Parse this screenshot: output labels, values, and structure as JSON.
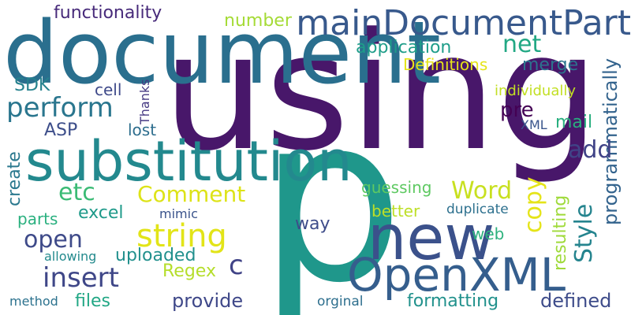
{
  "cloud": {
    "words": [
      {
        "text": "using",
        "color": "#48176a"
      },
      {
        "text": "p",
        "color": "#1f978b"
      },
      {
        "text": "document",
        "color": "#2a6f8e"
      },
      {
        "text": "substitution",
        "color": "#23898e"
      },
      {
        "text": "new",
        "color": "#3b518b"
      },
      {
        "text": "OpenXML",
        "color": "#355e8d"
      },
      {
        "text": "mainDocumentPart",
        "color": "#38598c"
      },
      {
        "text": "string",
        "color": "#e2e418"
      },
      {
        "text": "functionality",
        "color": "#472a7a"
      },
      {
        "text": "number",
        "color": "#a5db36"
      },
      {
        "text": "net",
        "color": "#22a884"
      },
      {
        "text": "application",
        "color": "#1e9d89"
      },
      {
        "text": "Definitions",
        "color": "#e5e419"
      },
      {
        "text": "merge",
        "color": "#2c738e"
      },
      {
        "text": "SDK",
        "color": "#26828e"
      },
      {
        "text": "cell",
        "color": "#3e4989"
      },
      {
        "text": "Thanks",
        "color": "#453882"
      },
      {
        "text": "perform",
        "color": "#2a768e"
      },
      {
        "text": "programmatically",
        "color": "#33638d"
      },
      {
        "text": "individually",
        "color": "#c2df23"
      },
      {
        "text": "ASP",
        "color": "#3d4e8a"
      },
      {
        "text": "lost",
        "color": "#2e6e8e"
      },
      {
        "text": "pre",
        "color": "#440154"
      },
      {
        "text": "mail",
        "color": "#29af7f"
      },
      {
        "text": "XML",
        "color": "#39558c"
      },
      {
        "text": "add",
        "color": "#404387"
      },
      {
        "text": "create",
        "color": "#2a788e"
      },
      {
        "text": "etc",
        "color": "#3bbb75"
      },
      {
        "text": "Comment",
        "color": "#dde318"
      },
      {
        "text": "Word",
        "color": "#c8e020"
      },
      {
        "text": "guessing",
        "color": "#5ec962"
      },
      {
        "text": "copy",
        "color": "#e5e419"
      },
      {
        "text": "Style",
        "color": "#25848e"
      },
      {
        "text": "resulting",
        "color": "#9fda3a"
      },
      {
        "text": "parts",
        "color": "#2ab07f"
      },
      {
        "text": "excel",
        "color": "#1f9a8a"
      },
      {
        "text": "mimic",
        "color": "#3a538b"
      },
      {
        "text": "better",
        "color": "#bddf26"
      },
      {
        "text": "duplicate",
        "color": "#2d708e"
      },
      {
        "text": "open",
        "color": "#3e4a89"
      },
      {
        "text": "way",
        "color": "#3e4c8a"
      },
      {
        "text": "web",
        "color": "#2db27d"
      },
      {
        "text": "allowing",
        "color": "#238a8d"
      },
      {
        "text": "uploaded",
        "color": "#21908d"
      },
      {
        "text": "c",
        "color": "#414487"
      },
      {
        "text": "insert",
        "color": "#3f4788"
      },
      {
        "text": "Regex",
        "color": "#b5de2b"
      },
      {
        "text": "method",
        "color": "#2c728e"
      },
      {
        "text": "files",
        "color": "#22a785"
      },
      {
        "text": "provide",
        "color": "#3f4889"
      },
      {
        "text": "orginal",
        "color": "#2e6f8e"
      },
      {
        "text": "formatting",
        "color": "#21918c"
      },
      {
        "text": "defined",
        "color": "#3e4c8a"
      }
    ]
  }
}
